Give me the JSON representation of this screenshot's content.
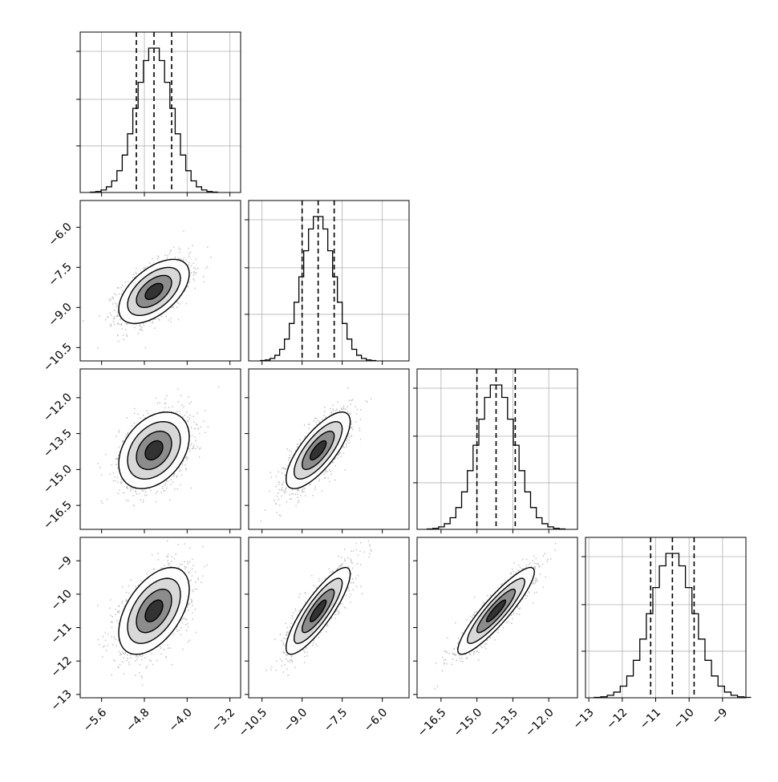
{
  "chart_data": {
    "type": "corner",
    "title": "",
    "grid": true,
    "parameters": [
      {
        "range": [
          -6.0,
          -3.0
        ],
        "ticks": [
          "-5.6",
          "-4.8",
          "-4.0",
          "-3.2"
        ],
        "tick_values": [
          -5.6,
          -4.8,
          -4.0,
          -3.2
        ],
        "quantiles": [
          -4.95,
          -4.62,
          -4.29
        ],
        "mean": -4.62,
        "sd": 0.33,
        "label": ""
      },
      {
        "range": [
          -11.0,
          -5.0
        ],
        "ticks": [
          "-10.5",
          "-9.0",
          "-7.5",
          "-6.0"
        ],
        "tick_values": [
          -10.5,
          -9.0,
          -7.5,
          -6.0
        ],
        "quantiles": [
          -9.0,
          -8.4,
          -7.8
        ],
        "mean": -8.4,
        "sd": 0.6,
        "label": ""
      },
      {
        "range": [
          -17.5,
          -10.8
        ],
        "ticks": [
          "-16.5",
          "-15.0",
          "-13.5",
          "-12.0"
        ],
        "tick_values": [
          -16.5,
          -15.0,
          -13.5,
          -12.0
        ],
        "quantiles": [
          -15.0,
          -14.2,
          -13.4
        ],
        "mean": -14.2,
        "sd": 0.8,
        "label": ""
      },
      {
        "range": [
          -13.1,
          -8.3
        ],
        "ticks": [
          "-13",
          "-12",
          "-11",
          "-10",
          "-9"
        ],
        "tick_values": [
          -13,
          -12,
          -11,
          -10,
          -9
        ],
        "quantiles": [
          -11.15,
          -10.5,
          -9.85
        ],
        "mean": -10.5,
        "sd": 0.65,
        "label": ""
      }
    ],
    "correlations": {
      "1-0": 0.55,
      "2-0": 0.35,
      "2-1": 0.75,
      "3-0": 0.5,
      "3-1": 0.85,
      "3-2": 0.9
    },
    "contour_levels_sigma": [
      0.5,
      1.0,
      1.5,
      2.0
    ],
    "colors": {
      "ink": "#000000",
      "points": "#aaaaaa",
      "grid": "#b0b0b0"
    }
  }
}
